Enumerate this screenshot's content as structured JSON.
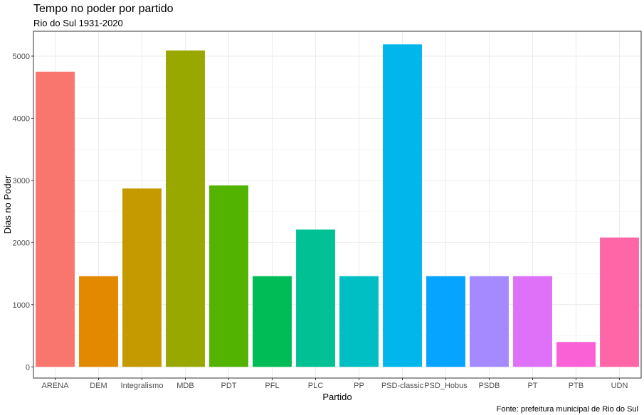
{
  "chart_data": {
    "type": "bar",
    "title": "Tempo no poder por partido",
    "subtitle": "Rio do Sul 1931-2020",
    "xlabel": "Partido",
    "ylabel": "Dias no Poder",
    "caption": "Fonte: prefeitura municipal de Rio do Sul",
    "ylim": [
      -180,
      5400
    ],
    "yticks": [
      0,
      1000,
      2000,
      3000,
      4000,
      5000
    ],
    "grid": true,
    "legend": "none",
    "categories": [
      "ARENA",
      "DEM",
      "Integralismo",
      "MDB",
      "PDT",
      "PFL",
      "PLC",
      "PP",
      "PSD-classic",
      "PSD_Hobus",
      "PSDB",
      "PT",
      "PTB",
      "UDN"
    ],
    "values": [
      4750,
      1460,
      2870,
      5090,
      2920,
      1460,
      2210,
      1460,
      5190,
      1460,
      1460,
      1460,
      400,
      2080
    ],
    "colors": [
      "#F8766D",
      "#E38900",
      "#C49A00",
      "#99A800",
      "#53B400",
      "#00BC56",
      "#00C094",
      "#00BFC4",
      "#00B6EB",
      "#06A4FF",
      "#A58AFF",
      "#DF70F8",
      "#FB61D7",
      "#FF66A8"
    ]
  }
}
